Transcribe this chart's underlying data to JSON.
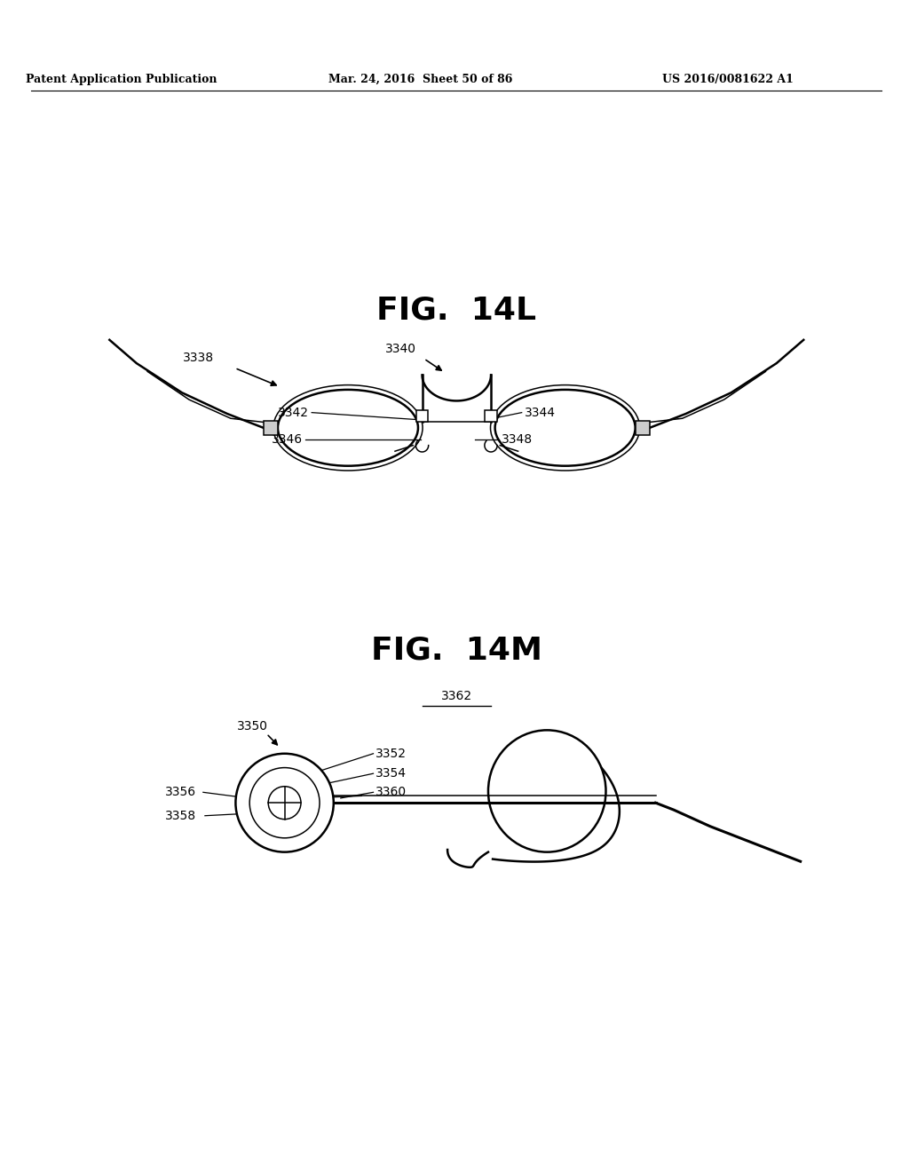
{
  "bg_color": "#ffffff",
  "line_color": "#000000",
  "header_left": "Patent Application Publication",
  "header_mid": "Mar. 24, 2016  Sheet 50 of 86",
  "header_right": "US 2016/0081622 A1",
  "fig14L_title": "FIG.  14L",
  "fig14M_title": "FIG.  14M"
}
